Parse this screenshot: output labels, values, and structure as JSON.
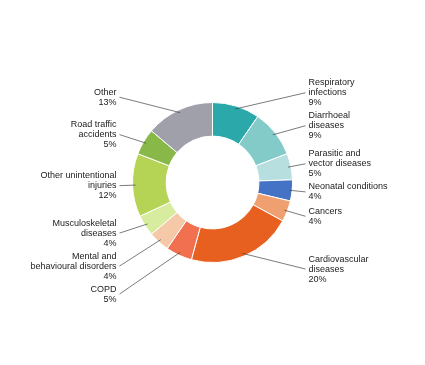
{
  "chart_data": {
    "type": "doughnut",
    "categories": [
      "Respiratory\ninfections",
      "Diarrhoeal\ndiseases",
      "Parasitic and\nvector diseases",
      "Neonatal conditions",
      "Cancers",
      "Cardiovascular\ndiseases",
      "COPD",
      "Mental and\nbehavioural disorders",
      "Musculoskeletal\ndiseases",
      "Other unintentional\ninjuries",
      "Road traffic\naccidents",
      "Other"
    ],
    "values": [
      9,
      9,
      5,
      4,
      4,
      20,
      5,
      4,
      4,
      12,
      5,
      13
    ],
    "value_labels": [
      "9%",
      "9%",
      "5%",
      "4%",
      "4%",
      "20%",
      "5%",
      "4%",
      "4%",
      "12%",
      "5%",
      "13%"
    ],
    "colors": [
      "#2aa8aa",
      "#82cbc8",
      "#b8dfe0",
      "#4472c4",
      "#f0a070",
      "#e86020",
      "#f07050",
      "#f5c8a8",
      "#d8eca0",
      "#b5d455",
      "#88b848",
      "#a0a0aa"
    ],
    "data_labels": true
  }
}
